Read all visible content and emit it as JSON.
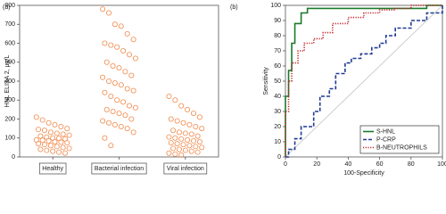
{
  "chart_data": [
    {
      "type": "strip",
      "panel_label": "(a)",
      "ylabel": "HNL ELISA 2, µg/L",
      "ylim": [
        0,
        800
      ],
      "yticks": [
        0,
        100,
        200,
        300,
        400,
        500,
        600,
        700,
        800
      ],
      "color": "#f08a4b",
      "categories": [
        "Healthy",
        "Bacterial infection",
        "Viral infection"
      ],
      "series": [
        {
          "values": [
            210,
            195,
            180,
            170,
            160,
            150,
            145,
            140,
            130,
            125,
            120,
            115,
            110,
            105,
            100,
            98,
            95,
            90,
            88,
            85,
            80,
            78,
            75,
            70,
            65,
            60,
            55,
            50,
            45,
            40,
            35,
            30,
            25,
            20
          ]
        },
        {
          "values": [
            780,
            760,
            700,
            690,
            650,
            620,
            600,
            590,
            580,
            560,
            540,
            520,
            500,
            480,
            470,
            450,
            430,
            420,
            400,
            390,
            380,
            360,
            350,
            340,
            320,
            300,
            290,
            270,
            260,
            250,
            240,
            230,
            220,
            200,
            190,
            180,
            170,
            160,
            150,
            130,
            100,
            60
          ]
        },
        {
          "values": [
            320,
            300,
            270,
            250,
            230,
            210,
            200,
            190,
            180,
            170,
            160,
            150,
            140,
            130,
            125,
            120,
            110,
            105,
            100,
            95,
            90,
            85,
            80,
            75,
            70,
            65,
            60,
            55,
            50,
            45,
            40,
            35,
            30,
            25,
            20,
            15,
            10
          ]
        }
      ]
    },
    {
      "type": "line",
      "panel_label": "(b)",
      "xlabel": "100-Specificity",
      "ylabel": "Sensitivity",
      "xlim": [
        0,
        100
      ],
      "ylim": [
        0,
        100
      ],
      "xticks": [
        0,
        20,
        40,
        60,
        80,
        100
      ],
      "yticks": [
        0,
        10,
        20,
        30,
        40,
        50,
        60,
        70,
        80,
        90,
        100
      ],
      "legend": "lower right",
      "series": [
        {
          "name": "S-HNL",
          "color": "#1a7a2a",
          "dash": "solid",
          "x": [
            0,
            0,
            2,
            2,
            4,
            4,
            6,
            6,
            10,
            10,
            14,
            14,
            90,
            90,
            100
          ],
          "values": [
            0,
            40,
            40,
            57,
            57,
            75,
            75,
            88,
            88,
            95,
            95,
            98,
            98,
            100,
            100
          ]
        },
        {
          "name": "P-CRP",
          "color": "#1f3a93",
          "dash": "dashed",
          "x": [
            0,
            2,
            2,
            6,
            6,
            10,
            10,
            18,
            18,
            22,
            22,
            28,
            28,
            32,
            32,
            38,
            38,
            42,
            42,
            48,
            48,
            55,
            55,
            60,
            60,
            64,
            64,
            70,
            70,
            80,
            80,
            90,
            90,
            100,
            100
          ],
          "values": [
            0,
            0,
            5,
            5,
            12,
            12,
            20,
            20,
            30,
            30,
            40,
            40,
            45,
            45,
            55,
            55,
            62,
            62,
            65,
            65,
            68,
            68,
            72,
            72,
            75,
            75,
            80,
            80,
            85,
            85,
            90,
            90,
            95,
            95,
            100
          ]
        },
        {
          "name": "B-NEUTROPHILS",
          "color": "#c0282d",
          "dash": "dotted",
          "x": [
            0,
            0,
            2,
            2,
            4,
            4,
            8,
            8,
            12,
            12,
            18,
            18,
            24,
            24,
            30,
            30,
            40,
            40,
            50,
            50,
            60,
            60,
            70,
            70,
            80,
            80,
            100
          ],
          "values": [
            0,
            30,
            30,
            50,
            50,
            62,
            62,
            70,
            70,
            75,
            75,
            78,
            78,
            82,
            82,
            88,
            88,
            92,
            92,
            95,
            95,
            97,
            97,
            98,
            98,
            100,
            100
          ]
        }
      ]
    }
  ]
}
